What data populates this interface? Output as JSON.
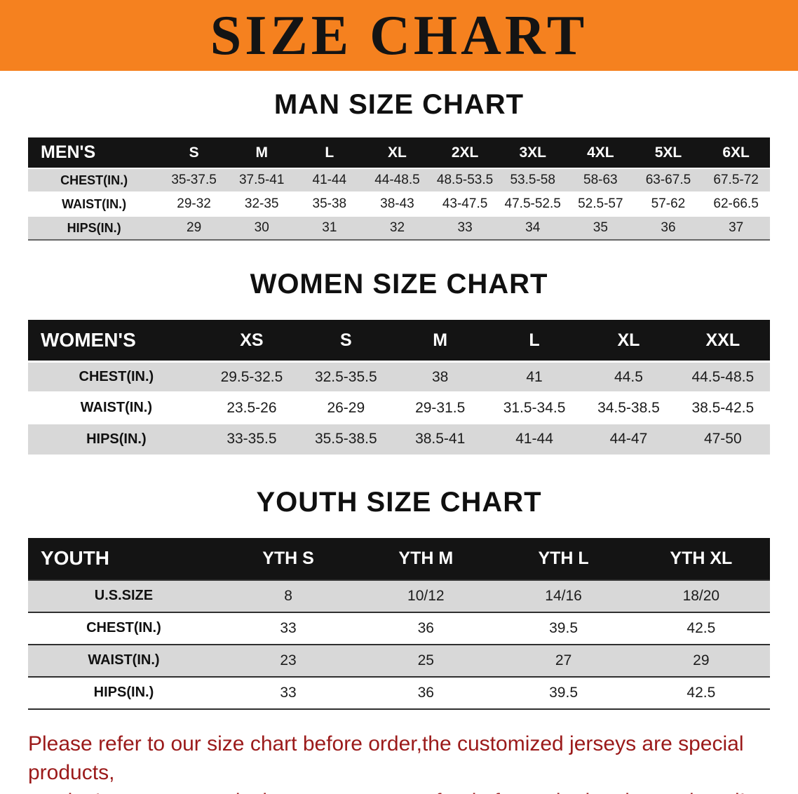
{
  "banner": {
    "title": "SIZE CHART"
  },
  "colors": {
    "banner_bg": "#f5811f",
    "table_header_bg": "#141414",
    "row_stripe": "#d8d8d8",
    "disclaimer_text": "#9b1a1a"
  },
  "sections": [
    {
      "id": "men",
      "heading": "MAN SIZE CHART",
      "table": {
        "header_label": "MEN'S",
        "columns": [
          "S",
          "M",
          "L",
          "XL",
          "2XL",
          "3XL",
          "4XL",
          "5XL",
          "6XL"
        ],
        "rows": [
          {
            "label": "CHEST(IN.)",
            "values": [
              "35-37.5",
              "37.5-41",
              "41-44",
              "44-48.5",
              "48.5-53.5",
              "53.5-58",
              "58-63",
              "63-67.5",
              "67.5-72"
            ]
          },
          {
            "label": "WAIST(IN.)",
            "values": [
              "29-32",
              "32-35",
              "35-38",
              "38-43",
              "43-47.5",
              "47.5-52.5",
              "52.5-57",
              "57-62",
              "62-66.5"
            ]
          },
          {
            "label": "HIPS(IN.)",
            "values": [
              "29",
              "30",
              "31",
              "32",
              "33",
              "34",
              "35",
              "36",
              "37"
            ]
          }
        ]
      }
    },
    {
      "id": "women",
      "heading": "WOMEN SIZE CHART",
      "table": {
        "header_label": "WOMEN'S",
        "columns": [
          "XS",
          "S",
          "M",
          "L",
          "XL",
          "XXL"
        ],
        "rows": [
          {
            "label": "CHEST(IN.)",
            "values": [
              "29.5-32.5",
              "32.5-35.5",
              "38",
              "41",
              "44.5",
              "44.5-48.5"
            ]
          },
          {
            "label": "WAIST(IN.)",
            "values": [
              "23.5-26",
              "26-29",
              "29-31.5",
              "31.5-34.5",
              "34.5-38.5",
              "38.5-42.5"
            ]
          },
          {
            "label": "HIPS(IN.)",
            "values": [
              "33-35.5",
              "35.5-38.5",
              "38.5-41",
              "41-44",
              "44-47",
              "47-50"
            ]
          }
        ]
      }
    },
    {
      "id": "youth",
      "heading": "YOUTH SIZE CHART",
      "table": {
        "header_label": "YOUTH",
        "columns": [
          "YTH S",
          "YTH M",
          "YTH L",
          "YTH XL"
        ],
        "rows": [
          {
            "label": "U.S.SIZE",
            "values": [
              "8",
              "10/12",
              "14/16",
              "18/20"
            ]
          },
          {
            "label": "CHEST(IN.)",
            "values": [
              "33",
              "36",
              "39.5",
              "42.5"
            ]
          },
          {
            "label": "WAIST(IN.)",
            "values": [
              "23",
              "25",
              "27",
              "29"
            ]
          },
          {
            "label": "HIPS(IN.)",
            "values": [
              "33",
              "36",
              "39.5",
              "42.5"
            ]
          }
        ]
      }
    }
  ],
  "disclaimer": {
    "line1": "Please refer to our size chart before order,the customized jerseys are special products,",
    "line2": "we don't accept cancel, change, teturn or refund after order has been placed!"
  }
}
